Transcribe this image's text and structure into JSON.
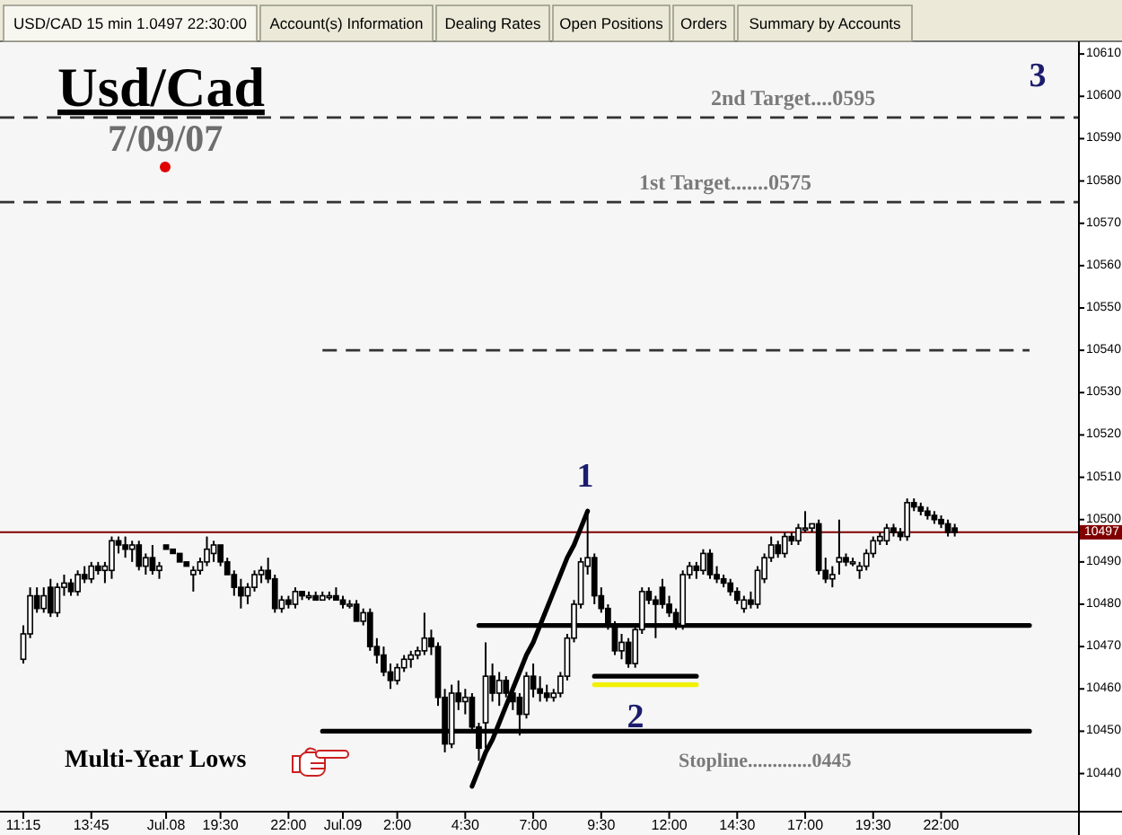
{
  "chart_data": {
    "type": "candlestick",
    "title": "Usd/Cad",
    "subtitle": "7/09/07",
    "color": "#000000",
    "categories": [
      "11:15",
      null,
      null,
      null,
      null,
      null,
      null,
      null,
      null,
      null,
      "13:45",
      null,
      null,
      null,
      null,
      null,
      null,
      null,
      null,
      null,
      null,
      "Jul.08",
      null,
      null,
      null,
      null,
      null,
      null,
      null,
      "19:30",
      null,
      null,
      null,
      null,
      null,
      null,
      null,
      null,
      null,
      "22:00",
      null,
      null,
      null,
      null,
      null,
      null,
      null,
      "Jul.09",
      null,
      null,
      null,
      null,
      null,
      null,
      null,
      "2:00",
      null,
      null,
      null,
      null,
      null,
      null,
      null,
      null,
      null,
      "4:30",
      null,
      null,
      null,
      null,
      null,
      null,
      null,
      null,
      null,
      "7:00",
      null,
      null,
      null,
      null,
      null,
      null,
      null,
      null,
      null,
      "9:30",
      null,
      null,
      null,
      null,
      null,
      null,
      null,
      null,
      null,
      "12:00",
      null,
      null,
      null,
      null,
      null,
      null,
      null,
      null,
      null,
      "14:30",
      null,
      null,
      null,
      null,
      null,
      null,
      null,
      null,
      null,
      "17:00",
      null,
      null,
      null,
      null,
      null,
      null,
      null,
      null,
      null,
      "19:30",
      null,
      null,
      null,
      null,
      null,
      null,
      null,
      null,
      null,
      "22:00",
      null,
      null,
      null,
      null,
      null,
      null,
      null,
      null,
      null,
      null,
      null,
      null,
      null,
      null,
      null,
      null,
      null,
      null,
      null,
      null
    ],
    "ohlc": [
      [
        10467,
        10475,
        10466,
        10473
      ],
      [
        10473,
        10484,
        10472,
        10482
      ],
      [
        10482,
        10484,
        10478,
        10479
      ],
      [
        10479,
        10484,
        10478,
        10482
      ],
      [
        10484,
        10486,
        10477,
        10478
      ],
      [
        10478,
        10485,
        10477,
        10484
      ],
      [
        10484,
        10487,
        10482,
        10485
      ],
      [
        10485,
        10486,
        10482,
        10483
      ],
      [
        10483,
        10488,
        10482,
        10487
      ],
      [
        10487,
        10489,
        10485,
        10486
      ],
      [
        10486,
        10490,
        10485,
        10489
      ],
      [
        10489,
        10490,
        10487,
        10488
      ],
      [
        10488,
        10490,
        10485,
        10489
      ],
      [
        10488,
        10496,
        10486,
        10495
      ],
      [
        10495,
        10496,
        10492,
        10494
      ],
      [
        10494,
        10496,
        10491,
        10493
      ],
      [
        10493,
        10495,
        10490,
        10494
      ],
      [
        10494,
        10495,
        10488,
        10489
      ],
      [
        10489,
        10492,
        10487,
        10491
      ],
      [
        10491,
        10494,
        10487,
        10488
      ],
      [
        10488,
        10490,
        10486,
        10489
      ],
      [
        10494,
        10494,
        10493,
        10493
      ],
      [
        10493,
        10493,
        10492,
        10492
      ],
      [
        10492,
        10492,
        10490,
        10490
      ],
      [
        10490,
        10490,
        10489,
        10489
      ],
      [
        10487,
        10489,
        10483,
        10488
      ],
      [
        10488,
        10491,
        10487,
        10490
      ],
      [
        10490,
        10496,
        10489,
        10493
      ],
      [
        10492,
        10495,
        10490,
        10494
      ],
      [
        10494,
        10494,
        10489,
        10490
      ],
      [
        10490,
        10491,
        10487,
        10487
      ],
      [
        10487,
        10488,
        10482,
        10484
      ],
      [
        10484,
        10486,
        10479,
        10482
      ],
      [
        10482,
        10485,
        10480,
        10484
      ],
      [
        10484,
        10488,
        10483,
        10487
      ],
      [
        10487,
        10489,
        10485,
        10488
      ],
      [
        10488,
        10491,
        10485,
        10486
      ],
      [
        10486,
        10487,
        10478,
        10479
      ],
      [
        10479,
        10482,
        10478,
        10481
      ],
      [
        10481,
        10482,
        10479,
        10480
      ],
      [
        10480,
        10484,
        10479,
        10483
      ],
      [
        10483,
        10483,
        10481,
        10482
      ],
      [
        10482,
        10483,
        10481,
        10482
      ],
      [
        10482,
        10483,
        10481,
        10481
      ],
      [
        10481,
        10483,
        10481,
        10482
      ],
      [
        10482,
        10483,
        10481,
        10482
      ],
      [
        10482,
        10484,
        10481,
        10481
      ],
      [
        10481,
        10482,
        10479,
        10480
      ],
      [
        10480,
        10481,
        10479,
        10480
      ],
      [
        10480,
        10481,
        10476,
        10476
      ],
      [
        10476,
        10479,
        10475,
        10478
      ],
      [
        10478,
        10479,
        10469,
        10470
      ],
      [
        10470,
        10472,
        10466,
        10468
      ],
      [
        10468,
        10470,
        10463,
        10464
      ],
      [
        10464,
        10466,
        10460,
        10462
      ],
      [
        10462,
        10466,
        10461,
        10465
      ],
      [
        10465,
        10468,
        10464,
        10467
      ],
      [
        10467,
        10469,
        10465,
        10468
      ],
      [
        10468,
        10470,
        10467,
        10469
      ],
      [
        10469,
        10478,
        10468,
        10472
      ],
      [
        10472,
        10474,
        10468,
        10470
      ],
      [
        10470,
        10471,
        10456,
        10458
      ],
      [
        10458,
        10460,
        10445,
        10447
      ],
      [
        10447,
        10461,
        10446,
        10459
      ],
      [
        10459,
        10462,
        10455,
        10457
      ],
      [
        10457,
        10460,
        10454,
        10458
      ],
      [
        10458,
        10459,
        10450,
        10451
      ],
      [
        10451,
        10452,
        10443,
        10446
      ],
      [
        10452,
        10471,
        10446,
        10463
      ],
      [
        10463,
        10466,
        10457,
        10459
      ],
      [
        10459,
        10464,
        10456,
        10462
      ],
      [
        10462,
        10463,
        10458,
        10459
      ],
      [
        10459,
        10461,
        10455,
        10457
      ],
      [
        10458,
        10459,
        10449,
        10454
      ],
      [
        10454,
        10464,
        10453,
        10463
      ],
      [
        10463,
        10466,
        10458,
        10460
      ],
      [
        10460,
        10463,
        10457,
        10459
      ],
      [
        10459,
        10461,
        10457,
        10458
      ],
      [
        10458,
        10460,
        10457,
        10459
      ],
      [
        10459,
        10464,
        10458,
        10463
      ],
      [
        10463,
        10473,
        10462,
        10472
      ],
      [
        10472,
        10481,
        10471,
        10480
      ],
      [
        10480,
        10491,
        10479,
        10490
      ],
      [
        10489,
        10501,
        10487,
        10491
      ],
      [
        10491,
        10492,
        10480,
        10482
      ],
      [
        10482,
        10484,
        10478,
        10479
      ],
      [
        10479,
        10480,
        10474,
        10475
      ],
      [
        10475,
        10476,
        10468,
        10469
      ],
      [
        10469,
        10473,
        10467,
        10471
      ],
      [
        10471,
        10472,
        10465,
        10466
      ],
      [
        10466,
        10475,
        10465,
        10474
      ],
      [
        10474,
        10484,
        10473,
        10483
      ],
      [
        10483,
        10484,
        10480,
        10481
      ],
      [
        10481,
        10482,
        10472,
        10480
      ],
      [
        10484,
        10486,
        10479,
        10480
      ],
      [
        10480,
        10482,
        10477,
        10478
      ],
      [
        10478,
        10479,
        10474,
        10475
      ],
      [
        10475,
        10488,
        10474,
        10487
      ],
      [
        10487,
        10490,
        10486,
        10489
      ],
      [
        10489,
        10490,
        10486,
        10488
      ],
      [
        10488,
        10493,
        10487,
        10492
      ],
      [
        10492,
        10493,
        10486,
        10487
      ],
      [
        10487,
        10489,
        10485,
        10486
      ],
      [
        10486,
        10487,
        10484,
        10485
      ],
      [
        10485,
        10486,
        10482,
        10483
      ],
      [
        10483,
        10484,
        10480,
        10481
      ],
      [
        10479,
        10482,
        10478,
        10481
      ],
      [
        10481,
        10483,
        10479,
        10480
      ],
      [
        10480,
        10489,
        10479,
        10488
      ],
      [
        10486,
        10492,
        10485,
        10491
      ],
      [
        10491,
        10496,
        10490,
        10494
      ],
      [
        10494,
        10495,
        10491,
        10492
      ],
      [
        10492,
        10497,
        10491,
        10496
      ],
      [
        10496,
        10497,
        10494,
        10495
      ],
      [
        10495,
        10499,
        10494,
        10498
      ],
      [
        10498,
        10502,
        10497,
        10498
      ],
      [
        10498,
        10499,
        10497,
        10499
      ],
      [
        10499,
        10500,
        10487,
        10488
      ],
      [
        10488,
        10491,
        10485,
        10486
      ],
      [
        10486,
        10489,
        10484,
        10487
      ],
      [
        10490,
        10500,
        10487,
        10491
      ],
      [
        10491,
        10492,
        10489,
        10490
      ],
      [
        10490,
        10491,
        10489,
        10490
      ],
      [
        10488,
        10490,
        10486,
        10489
      ],
      [
        10489,
        10493,
        10488,
        10492
      ],
      [
        10492,
        10496,
        10491,
        10495
      ],
      [
        10495,
        10497,
        10494,
        10496
      ],
      [
        10495,
        10499,
        10494,
        10498
      ],
      [
        10498,
        10499,
        10496,
        10497
      ],
      [
        10497,
        10498,
        10495,
        10496
      ],
      [
        10496,
        10505,
        10495,
        10504
      ],
      [
        10504,
        10505,
        10502,
        10503
      ],
      [
        10503,
        10504,
        10501,
        10502
      ],
      [
        10502,
        10503,
        10500,
        10501
      ],
      [
        10501,
        10502,
        10499,
        10500
      ],
      [
        10500,
        10501,
        10498,
        10499
      ],
      [
        10499,
        10500,
        10496,
        10497
      ],
      [
        10498,
        10499,
        10496,
        10497
      ],
      null,
      null,
      null,
      null,
      null,
      null,
      null,
      null,
      null,
      null,
      null,
      null,
      null,
      null,
      null,
      null,
      null,
      null
    ],
    "series": [
      {
        "type": "line",
        "color": "#333333",
        "line_style": "dashed",
        "values": [
          null,
          null,
          null,
          null,
          null,
          null,
          null,
          null,
          null,
          null,
          null,
          null,
          null,
          null,
          null,
          null,
          null,
          null,
          null,
          null,
          null,
          null,
          null,
          null,
          null,
          null,
          null,
          null,
          null,
          null,
          null,
          null,
          null,
          null,
          null,
          null,
          null,
          null,
          null,
          null,
          null,
          null,
          null,
          null,
          10540,
          10540,
          10540,
          10540,
          10540,
          10540,
          10540,
          10540,
          10540,
          10540,
          10540,
          10540,
          10540,
          10540,
          10540,
          10540,
          10540,
          10540,
          10540,
          10540,
          10540,
          10540,
          10540,
          10540,
          10540,
          10540,
          10540,
          10540,
          10540,
          10540,
          10540,
          10540,
          10540,
          10540,
          10540,
          10540,
          10540,
          10540,
          10540,
          10540,
          10540,
          10540,
          10540,
          10540,
          10540,
          10540,
          10540,
          10540,
          10540,
          10540,
          10540,
          10540,
          10540,
          10540,
          10540,
          10540,
          10540,
          10540,
          10540,
          10540,
          10540,
          10540,
          10540,
          10540,
          10540,
          10540,
          10540,
          10540,
          10540,
          10540,
          10540,
          10540,
          10540,
          10540,
          10540,
          10540,
          10540,
          10540,
          10540,
          10540,
          10540,
          10540,
          10540,
          10540,
          10540,
          10540,
          10540,
          10540,
          10540,
          10540,
          10540,
          10540,
          10540,
          10540,
          10540,
          10540,
          10540,
          10540,
          10540,
          10540,
          10540,
          10540,
          10540,
          10540,
          10540,
          null,
          null,
          null,
          null,
          null,
          null,
          null
        ]
      },
      {
        "type": "line",
        "color": "#000000",
        "line_style": "solid",
        "values": [
          null,
          null,
          null,
          null,
          null,
          null,
          null,
          null,
          null,
          null,
          null,
          null,
          null,
          null,
          null,
          null,
          null,
          null,
          null,
          null,
          null,
          null,
          null,
          null,
          null,
          null,
          null,
          null,
          null,
          null,
          null,
          null,
          null,
          null,
          null,
          null,
          null,
          null,
          null,
          null,
          null,
          null,
          null,
          null,
          10450,
          10450,
          10450,
          10450,
          10450,
          10450,
          10450,
          10450,
          10450,
          10450,
          10450,
          10450,
          10450,
          10450,
          10450,
          10450,
          10450,
          10450,
          10450,
          10450,
          10450,
          10450,
          10450,
          10450,
          10450,
          10450,
          10450,
          10450,
          10450,
          10450,
          10450,
          10450,
          10450,
          10450,
          10450,
          10450,
          10450,
          10450,
          10450,
          10450,
          10450,
          10450,
          10450,
          10450,
          10450,
          10450,
          10450,
          10450,
          10450,
          10450,
          10450,
          10450,
          10450,
          10450,
          10450,
          10450,
          10450,
          10450,
          10450,
          10450,
          10450,
          10450,
          10450,
          10450,
          10450,
          10450,
          10450,
          10450,
          10450,
          10450,
          10450,
          10450,
          10450,
          10450,
          10450,
          10450,
          10450,
          10450,
          10450,
          10450,
          10450,
          10450,
          10450,
          10450,
          10450,
          10450,
          10450,
          10450,
          10450,
          10450,
          10450,
          10450,
          10450,
          10450,
          10450,
          10450,
          10450,
          10450,
          10450,
          10450,
          10450,
          10450,
          10450,
          10450,
          10450,
          null,
          null,
          null,
          null,
          null,
          null,
          null
        ]
      },
      {
        "type": "line",
        "color": "#000000",
        "line_style": "solid",
        "values": [
          null,
          null,
          null,
          null,
          null,
          null,
          null,
          null,
          null,
          null,
          null,
          null,
          null,
          null,
          null,
          null,
          null,
          null,
          null,
          null,
          null,
          null,
          null,
          null,
          null,
          null,
          null,
          null,
          null,
          null,
          null,
          null,
          null,
          null,
          null,
          null,
          null,
          null,
          null,
          null,
          null,
          null,
          null,
          null,
          null,
          null,
          null,
          null,
          null,
          null,
          null,
          null,
          null,
          null,
          null,
          null,
          null,
          null,
          null,
          null,
          null,
          null,
          null,
          null,
          null,
          null,
          null,
          10475,
          10475,
          10475,
          10475,
          10475,
          10475,
          10475,
          10475,
          10475,
          10475,
          10475,
          10475,
          10475,
          10475,
          10475,
          10475,
          10475,
          10475,
          10475,
          10475,
          10475,
          10475,
          10475,
          10475,
          10475,
          10475,
          10475,
          10475,
          10475,
          10475,
          10475,
          10475,
          10475,
          10475,
          10475,
          10475,
          10475,
          10475,
          10475,
          10475,
          10475,
          10475,
          10475,
          10475,
          10475,
          10475,
          10475,
          10475,
          10475,
          10475,
          10475,
          10475,
          10475,
          10475,
          10475,
          10475,
          10475,
          10475,
          10475,
          10475,
          10475,
          10475,
          10475,
          10475,
          10475,
          10475,
          10475,
          10475,
          10475,
          10475,
          10475,
          10475,
          10475,
          10475,
          10475,
          10475,
          10475,
          10475,
          10475,
          10475,
          10475,
          10475,
          null,
          null,
          null,
          null,
          null,
          null,
          null
        ]
      },
      {
        "type": "line",
        "color": "#000000",
        "line_style": "solid",
        "values": [
          null,
          null,
          null,
          null,
          null,
          null,
          null,
          null,
          null,
          null,
          null,
          null,
          null,
          null,
          null,
          null,
          null,
          null,
          null,
          null,
          null,
          null,
          null,
          null,
          null,
          null,
          null,
          null,
          null,
          null,
          null,
          null,
          null,
          null,
          null,
          null,
          null,
          null,
          null,
          null,
          null,
          null,
          null,
          null,
          null,
          null,
          null,
          null,
          null,
          null,
          null,
          null,
          null,
          null,
          null,
          null,
          null,
          null,
          null,
          null,
          null,
          null,
          null,
          null,
          null,
          null,
          10437,
          10441,
          10445,
          10448,
          10452,
          10456,
          10460,
          10464,
          10468,
          10471,
          10475,
          10479,
          10483,
          10487,
          10491,
          10494,
          10498,
          10502,
          null,
          null,
          null,
          null,
          null,
          null,
          null,
          null,
          null,
          null,
          null,
          null,
          null,
          null,
          null,
          null,
          null,
          null,
          null,
          null,
          null,
          null,
          null,
          null,
          null,
          null,
          null,
          null,
          null,
          null,
          null,
          null,
          null,
          null,
          null,
          null,
          null,
          null,
          null,
          null,
          null,
          null,
          null,
          null,
          null,
          null,
          null,
          null,
          null,
          null,
          null,
          null,
          null,
          null,
          null,
          null,
          null,
          null,
          null,
          null,
          null,
          null,
          null,
          null,
          null,
          null,
          null,
          null,
          null,
          null,
          null,
          null
        ]
      },
      {
        "type": "line",
        "color": "#000000",
        "line_style": "solid",
        "values": [
          null,
          null,
          null,
          null,
          null,
          null,
          null,
          null,
          null,
          null,
          null,
          null,
          null,
          null,
          null,
          null,
          null,
          null,
          null,
          null,
          null,
          null,
          null,
          null,
          null,
          null,
          null,
          null,
          null,
          null,
          null,
          null,
          null,
          null,
          null,
          null,
          null,
          null,
          null,
          null,
          null,
          null,
          null,
          null,
          null,
          null,
          null,
          null,
          null,
          null,
          null,
          null,
          null,
          null,
          null,
          null,
          null,
          null,
          null,
          null,
          null,
          null,
          null,
          null,
          null,
          null,
          null,
          null,
          null,
          null,
          null,
          null,
          null,
          null,
          null,
          null,
          null,
          null,
          null,
          null,
          null,
          null,
          null,
          null,
          10463,
          10463,
          10463,
          10463,
          10463,
          10463,
          10463,
          10463,
          10463,
          10463,
          10463,
          10463,
          10463,
          10463,
          10463,
          10463,
          null,
          null,
          null,
          null,
          null,
          null,
          null,
          null,
          null,
          null,
          null,
          null,
          null,
          null,
          null,
          null,
          null,
          null,
          null,
          null,
          null,
          null,
          null,
          null,
          null,
          null,
          null,
          null,
          null,
          null,
          null,
          null,
          null,
          null,
          null,
          null,
          null,
          null,
          null,
          null,
          null,
          null,
          null,
          null,
          null,
          null,
          null,
          null,
          null,
          null,
          null,
          null,
          null,
          null,
          null,
          null
        ]
      },
      {
        "type": "line",
        "color": "#f0f000",
        "line_style": "solid",
        "values": [
          null,
          null,
          null,
          null,
          null,
          null,
          null,
          null,
          null,
          null,
          null,
          null,
          null,
          null,
          null,
          null,
          null,
          null,
          null,
          null,
          null,
          null,
          null,
          null,
          null,
          null,
          null,
          null,
          null,
          null,
          null,
          null,
          null,
          null,
          null,
          null,
          null,
          null,
          null,
          null,
          null,
          null,
          null,
          null,
          null,
          null,
          null,
          null,
          null,
          null,
          null,
          null,
          null,
          null,
          null,
          null,
          null,
          null,
          null,
          null,
          null,
          null,
          null,
          null,
          null,
          null,
          null,
          null,
          null,
          null,
          null,
          null,
          null,
          null,
          null,
          null,
          null,
          null,
          null,
          null,
          null,
          null,
          null,
          null,
          10461,
          10461,
          10461,
          10461,
          10461,
          10461,
          10461,
          10461,
          10461,
          10461,
          10461,
          10461,
          10461,
          10461,
          10461,
          10461,
          null,
          null,
          null,
          null,
          null,
          null,
          null,
          null,
          null,
          null,
          null,
          null,
          null,
          null,
          null,
          null,
          null,
          null,
          null,
          null,
          null,
          null,
          null,
          null,
          null,
          null,
          null,
          null,
          null,
          null,
          null,
          null,
          null,
          null,
          null,
          null,
          null,
          null,
          null,
          null,
          null,
          null,
          null,
          null,
          null,
          null,
          null,
          null,
          null,
          null,
          null,
          null,
          null,
          null,
          null,
          null
        ]
      }
    ],
    "ylim": [
      10431,
      10613
    ],
    "yticks": [
      10440,
      10450,
      10460,
      10470,
      10480,
      10490,
      10500,
      10510,
      10520,
      10530,
      10540,
      10550,
      10560,
      10570,
      10580,
      10590,
      10600,
      10610
    ],
    "ref_lines": [
      {
        "axis": "y",
        "value": 10595,
        "label": "2nd Target....0595",
        "color": "#333333",
        "line_style": "dashed"
      },
      {
        "axis": "y",
        "value": 10575,
        "label": "1st Target.......0575",
        "color": "#333333",
        "line_style": "dashed"
      },
      {
        "axis": "y",
        "value": 10497,
        "label": "10497",
        "color": "#800000",
        "line_style": "solid"
      }
    ],
    "annotations": [
      "USD/CAD 15 min 1.0497 22:30:00",
      "Account(s) Information",
      "Dealing Rates",
      "Open Positions",
      "Orders",
      "Summary by Accounts",
      "1",
      "2",
      "3",
      "Multi-Year Lows",
      "Stopline.............0445"
    ]
  }
}
